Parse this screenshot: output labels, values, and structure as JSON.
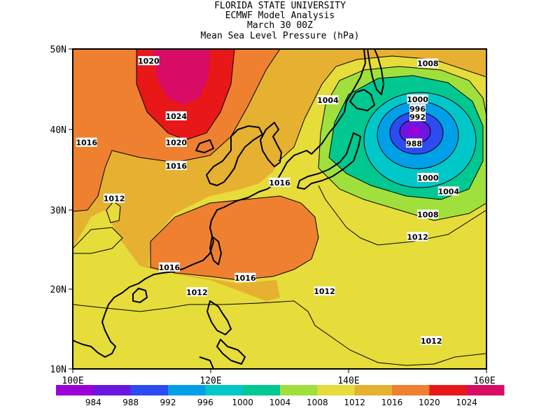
{
  "header": {
    "line1": "FLORIDA STATE UNIVERSITY",
    "line2": "ECMWF Model Analysis",
    "line3": "March 30 00Z",
    "line4": "Mean Sea Level Pressure (hPa)"
  },
  "map": {
    "lon_range": [
      100,
      160
    ],
    "lat_range": [
      10,
      50
    ],
    "lat_ticks": [
      "50N",
      "40N",
      "30N",
      "20N",
      "10N"
    ],
    "lon_ticks": [
      "100E",
      "120E",
      "140E",
      "160E"
    ]
  },
  "colors": {
    "c984": "#9b00d6",
    "c988": "#6a18e0",
    "c992": "#2a4cf0",
    "c996": "#00a0e8",
    "c1000": "#00c8c8",
    "c1004": "#00c890",
    "c1008": "#a0e03c",
    "c1012": "#e6dc3a",
    "c1016": "#e6b030",
    "c1020": "#ee8030",
    "c1024": "#e81818",
    "c1028": "#d80c64"
  },
  "contour_labels": [
    {
      "text": "1020",
      "lon": 111,
      "lat": 48.5
    },
    {
      "text": "1024",
      "lon": 115,
      "lat": 41.6
    },
    {
      "text": "1016",
      "lon": 102,
      "lat": 38.3
    },
    {
      "text": "1020",
      "lon": 115,
      "lat": 38.3
    },
    {
      "text": "1016",
      "lon": 115,
      "lat": 35.4
    },
    {
      "text": "1012",
      "lon": 106,
      "lat": 31.3
    },
    {
      "text": "1016",
      "lon": 130,
      "lat": 33.3
    },
    {
      "text": "1016",
      "lon": 114,
      "lat": 22.7
    },
    {
      "text": "1016",
      "lon": 125,
      "lat": 21.4
    },
    {
      "text": "1012",
      "lon": 118,
      "lat": 19.6
    },
    {
      "text": "1012",
      "lon": 136.5,
      "lat": 19.7
    },
    {
      "text": "1012",
      "lon": 152,
      "lat": 13.5
    },
    {
      "text": "1012",
      "lon": 150,
      "lat": 26.5
    },
    {
      "text": "1008",
      "lon": 151.5,
      "lat": 29.3
    },
    {
      "text": "1004",
      "lon": 154.5,
      "lat": 32.2
    },
    {
      "text": "1000",
      "lon": 151.5,
      "lat": 33.9
    },
    {
      "text": "1004",
      "lon": 137,
      "lat": 43.6
    },
    {
      "text": "1000",
      "lon": 150,
      "lat": 43.7
    },
    {
      "text": "1008",
      "lon": 151.5,
      "lat": 48.2
    },
    {
      "text": "996",
      "lon": 150,
      "lat": 42.5
    },
    {
      "text": "992",
      "lon": 150,
      "lat": 41.5
    },
    {
      "text": "988",
      "lon": 149.5,
      "lat": 38.2
    }
  ],
  "colorbar": {
    "labels": [
      "984",
      "988",
      "992",
      "996",
      "1000",
      "1004",
      "1008",
      "1012",
      "1016",
      "1020",
      "1024"
    ]
  }
}
